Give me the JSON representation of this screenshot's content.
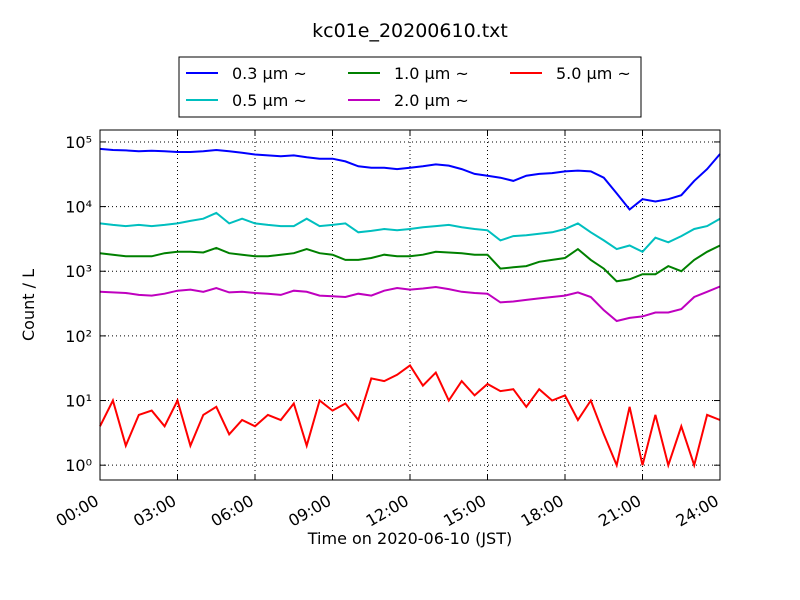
{
  "chart_data": {
    "type": "line",
    "title": "kc01e_20200610.txt",
    "x_label": "Time on 2020-06-10 (JST)",
    "y_label": "Count / L",
    "x": [
      0,
      0.5,
      1,
      1.5,
      2,
      2.5,
      3,
      3.5,
      4,
      4.5,
      5,
      5.5,
      6,
      6.5,
      7,
      7.5,
      8,
      8.5,
      9,
      9.5,
      10,
      10.5,
      11,
      11.5,
      12,
      12.5,
      13,
      13.5,
      14,
      14.5,
      15,
      15.5,
      16,
      16.5,
      17,
      17.5,
      18,
      18.5,
      19,
      19.5,
      20,
      20.5,
      21,
      21.5,
      22,
      22.5,
      23,
      23.5,
      24
    ],
    "xlim": [
      0,
      24
    ],
    "xticks": [
      {
        "value": 0,
        "label": "00:00"
      },
      {
        "value": 3,
        "label": "03:00"
      },
      {
        "value": 6,
        "label": "06:00"
      },
      {
        "value": 9,
        "label": "09:00"
      },
      {
        "value": 12,
        "label": "12:00"
      },
      {
        "value": 15,
        "label": "15:00"
      },
      {
        "value": 18,
        "label": "18:00"
      },
      {
        "value": 21,
        "label": "21:00"
      },
      {
        "value": 24,
        "label": "24:00"
      }
    ],
    "ylim": [
      0.59,
      153000
    ],
    "log_y": true,
    "yticks": [
      {
        "value": 1,
        "label": "10⁰"
      },
      {
        "value": 10,
        "label": "10¹"
      },
      {
        "value": 100,
        "label": "10²"
      },
      {
        "value": 1000,
        "label": "10³"
      },
      {
        "value": 10000,
        "label": "10⁴"
      },
      {
        "value": 100000,
        "label": "10⁵"
      }
    ],
    "grid": true,
    "series": [
      {
        "name": "0.3 μm  ~",
        "color": "#0000ff",
        "values": [
          78000,
          75000,
          74000,
          72000,
          73000,
          72000,
          70000,
          70000,
          72000,
          75000,
          72000,
          68000,
          64000,
          62000,
          60000,
          62000,
          58000,
          55000,
          55000,
          50000,
          42000,
          40000,
          40000,
          38000,
          40000,
          42000,
          45000,
          43000,
          38000,
          32000,
          30000,
          28000,
          25000,
          30000,
          32000,
          33000,
          35000,
          36000,
          35000,
          28000,
          16000,
          9000,
          13000,
          12000,
          13000,
          15000,
          25000,
          38000,
          65000
        ]
      },
      {
        "name": "0.5 μm  ~",
        "color": "#00bfbf",
        "values": [
          5500,
          5200,
          5000,
          5200,
          5000,
          5200,
          5500,
          6000,
          6500,
          8000,
          5500,
          6500,
          5500,
          5200,
          5000,
          5000,
          6500,
          5000,
          5200,
          5500,
          4000,
          4200,
          4500,
          4300,
          4500,
          4800,
          5000,
          5200,
          4800,
          4500,
          4300,
          3000,
          3500,
          3600,
          3800,
          4000,
          4500,
          5500,
          4000,
          3000,
          2200,
          2500,
          2000,
          3300,
          2800,
          3500,
          4500,
          5000,
          6500
        ]
      },
      {
        "name": "1.0 μm  ~",
        "color": "#008000",
        "values": [
          1900,
          1800,
          1700,
          1700,
          1700,
          1900,
          2000,
          2000,
          1950,
          2300,
          1900,
          1800,
          1700,
          1700,
          1800,
          1900,
          2200,
          1900,
          1800,
          1500,
          1500,
          1600,
          1800,
          1700,
          1700,
          1800,
          2000,
          1950,
          1900,
          1800,
          1800,
          1100,
          1150,
          1200,
          1400,
          1500,
          1600,
          2200,
          1500,
          1100,
          700,
          750,
          900,
          900,
          1200,
          1000,
          1500,
          2000,
          2500
        ]
      },
      {
        "name": "2.0 μm  ~",
        "color": "#bf00bf",
        "values": [
          480,
          470,
          460,
          430,
          420,
          450,
          500,
          520,
          480,
          550,
          470,
          480,
          460,
          450,
          430,
          500,
          480,
          420,
          410,
          400,
          450,
          420,
          500,
          550,
          520,
          540,
          570,
          530,
          480,
          460,
          450,
          330,
          340,
          360,
          380,
          400,
          420,
          470,
          400,
          250,
          170,
          190,
          200,
          230,
          230,
          260,
          400,
          480,
          580
        ]
      },
      {
        "name": "5.0 μm  ~",
        "color": "#ff0000",
        "values": [
          4,
          10,
          2,
          6,
          7,
          4,
          10,
          2,
          6,
          8,
          3,
          5,
          4,
          6,
          5,
          9,
          2,
          10,
          7,
          9,
          5,
          22,
          20,
          25,
          35,
          17,
          27,
          10,
          20,
          12,
          18,
          14,
          15,
          8,
          15,
          10,
          12,
          5,
          10,
          3,
          1,
          8,
          1,
          6,
          1,
          4,
          1,
          6,
          5
        ]
      }
    ]
  }
}
